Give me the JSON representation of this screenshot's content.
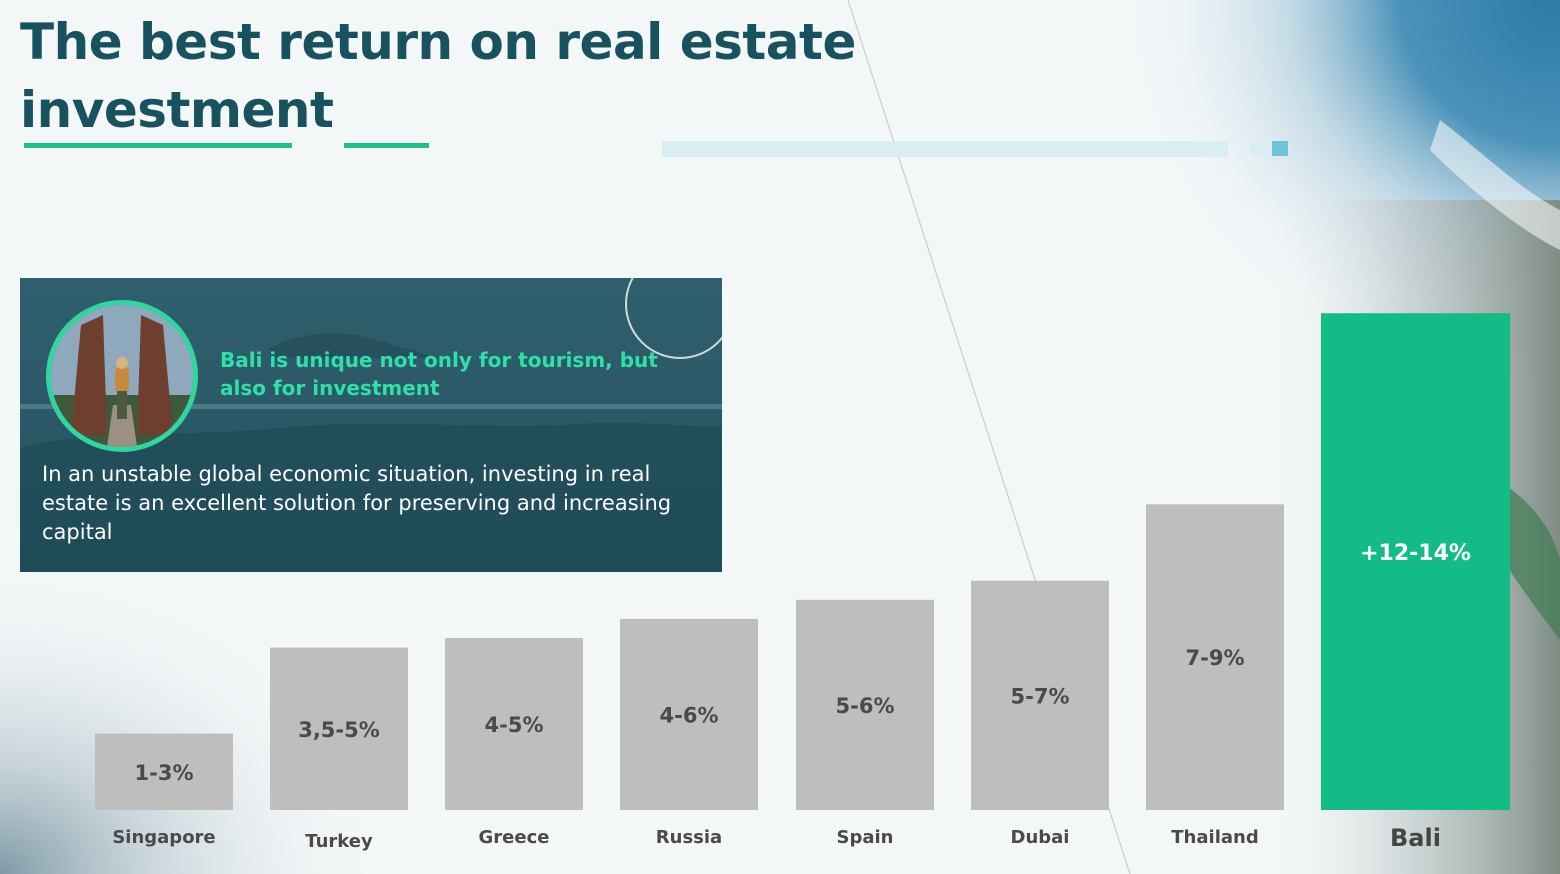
{
  "title": "The best return on real estate investment",
  "info_box": {
    "heading": "Bali is unique not only for tourism, but also for investment",
    "body": "In an unstable global economic situation, investing in real estate is an excellent solution for preserving and increasing capital",
    "photo_icon": "bali-temple-gate-photo"
  },
  "colors": {
    "title": "#18525e",
    "accent": "#1fbf8c",
    "bar": "#bebebe",
    "highlight_bar": "#13bb87",
    "label": "#4a4a4a"
  },
  "chart_data": {
    "type": "bar",
    "title": "",
    "xlabel": "",
    "ylabel": "",
    "ylim": [
      0,
      14
    ],
    "grid": false,
    "categories": [
      "Singapore",
      "Turkey",
      "Greece",
      "Russia",
      "Spain",
      "Dubai",
      "Thailand",
      "Bali"
    ],
    "values": [
      2,
      4.25,
      4.5,
      5,
      5.5,
      6,
      8,
      13
    ],
    "data_labels": [
      "1-3%",
      "3,5-5%",
      "4-5%",
      "4-6%",
      "5-6%",
      "5-7%",
      "7-9%",
      "+12-14%"
    ],
    "highlight": "Bali"
  }
}
